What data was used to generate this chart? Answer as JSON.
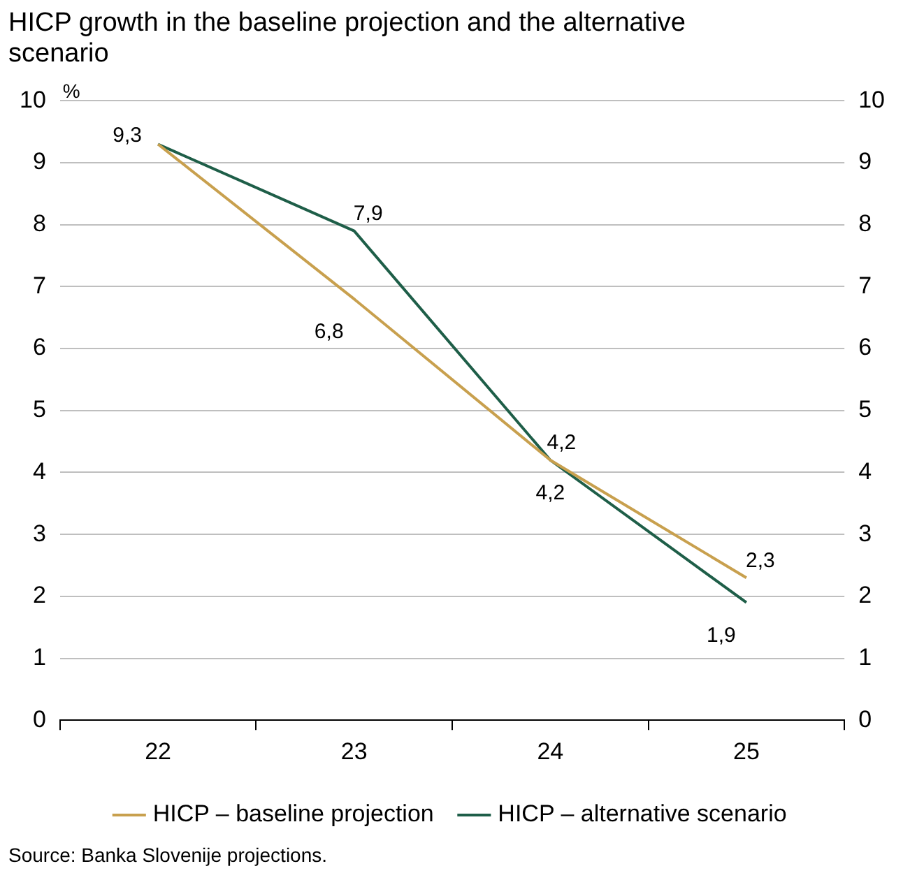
{
  "chart_data": {
    "type": "line",
    "title": "HICP growth in the baseline projection and the alternative scenario",
    "ylabel": "%",
    "categories": [
      "22",
      "23",
      "24",
      "25"
    ],
    "series": [
      {
        "name": "HICP – baseline projection",
        "color": "#c8a04e",
        "values": [
          9.3,
          6.8,
          4.2,
          2.3
        ],
        "value_labels": [
          "9,3",
          "6,8",
          "4,2",
          "2,3"
        ]
      },
      {
        "name": "HICP – alternative scenario",
        "color": "#1e5e48",
        "values": [
          9.3,
          7.9,
          4.2,
          1.9
        ],
        "value_labels": [
          null,
          "7,9",
          "4,2",
          "1,9"
        ]
      }
    ],
    "ylim": [
      0,
      10
    ],
    "yticks": [
      0,
      1,
      2,
      3,
      4,
      5,
      6,
      7,
      8,
      9,
      10
    ],
    "y2lim": [
      0,
      10
    ],
    "y2ticks": [
      0,
      1,
      2,
      3,
      4,
      5,
      6,
      7,
      8,
      9,
      10
    ],
    "grid": "y",
    "legend": "bottom",
    "marker": "none",
    "line_style": "solid",
    "annotations": [
      "Source: Banka Slovenije projections."
    ]
  }
}
